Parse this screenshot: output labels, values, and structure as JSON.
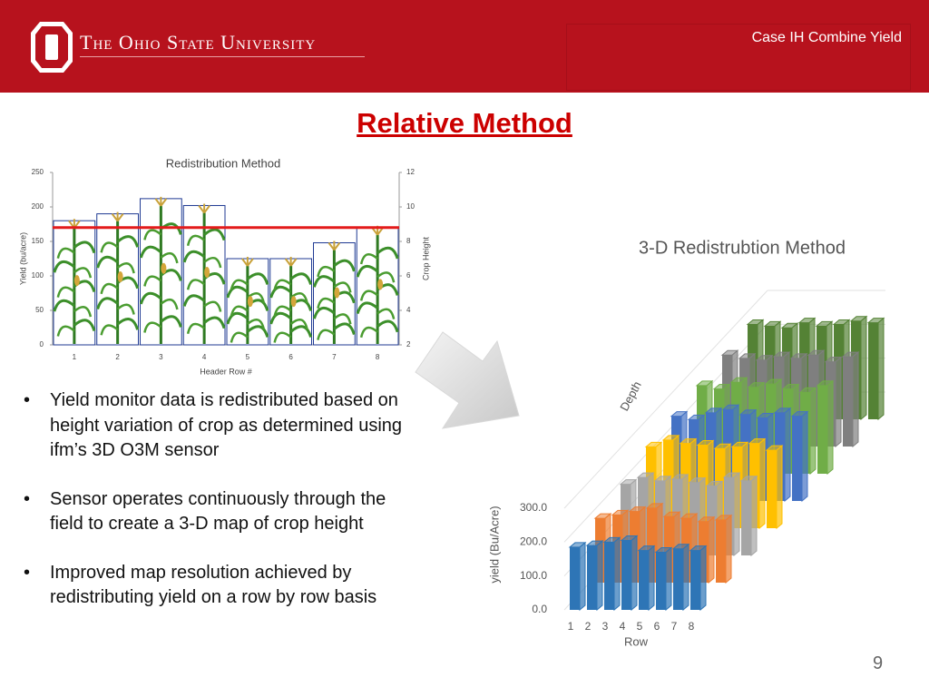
{
  "header": {
    "university": "The Ohio State University",
    "topic": "Case IH Combine Yield"
  },
  "title": "Relative Method",
  "chart_data": [
    {
      "type": "bar",
      "title": "Redistribution Method",
      "categories": [
        "1",
        "2",
        "3",
        "4",
        "5",
        "6",
        "7",
        "8"
      ],
      "values": [
        180,
        190,
        212,
        202,
        125,
        125,
        148,
        170
      ],
      "color": "#1f3a93",
      "x_label": "Header Row #",
      "y_label": "Yield (bu/acre)",
      "y2_label": "Crop Height",
      "ylim": [
        0,
        250
      ],
      "yticks": [
        0,
        50,
        100,
        150,
        200,
        250
      ],
      "y2lim": [
        2,
        12
      ],
      "y2ticks": [
        2,
        4,
        6,
        8,
        10,
        12
      ],
      "reference_line": {
        "value": 170,
        "color": "#e31b1b"
      }
    },
    {
      "type": "bar3d",
      "title": "3-D Redistrubtion Method",
      "categories": [
        "1",
        "2",
        "3",
        "4",
        "5",
        "6",
        "7",
        "8"
      ],
      "x_label": "Row",
      "y_label": "yield (Bu/Acre)",
      "z_label": "Depth",
      "ylim": [
        0,
        300
      ],
      "yticks": [
        {
          "value": 0,
          "label": "0.0"
        },
        {
          "value": 100,
          "label": "100.0"
        },
        {
          "value": 200,
          "label": "200.0"
        },
        {
          "value": 300,
          "label": "300.0"
        }
      ],
      "series": [
        {
          "color": "#2e75b6",
          "values": [
            185,
            190,
            200,
            205,
            175,
            170,
            180,
            175
          ]
        },
        {
          "color": "#ed7d31",
          "values": [
            190,
            200,
            210,
            220,
            195,
            190,
            180,
            185
          ]
        },
        {
          "color": "#a5a5a5",
          "values": [
            210,
            230,
            220,
            225,
            215,
            205,
            230,
            220
          ]
        },
        {
          "color": "#ffc000",
          "values": [
            240,
            260,
            250,
            245,
            235,
            240,
            250,
            230
          ]
        },
        {
          "color": "#4472c4",
          "values": [
            250,
            240,
            260,
            270,
            255,
            245,
            260,
            250
          ]
        },
        {
          "color": "#70ad47",
          "values": [
            260,
            250,
            270,
            255,
            265,
            250,
            240,
            260
          ]
        },
        {
          "color": "#7f7f7f",
          "values": [
            270,
            260,
            255,
            265,
            260,
            270,
            250,
            265
          ]
        },
        {
          "color": "#548235",
          "values": [
            280,
            275,
            270,
            285,
            275,
            280,
            290,
            285
          ]
        }
      ]
    }
  ],
  "bullets": [
    "Yield monitor data is redistributed based on height variation of crop as determined using ifm’s 3D O3M sensor",
    "Sensor operates continuously through the field to create a 3-D map of crop height",
    "Improved map resolution achieved by redistributing yield on a row by row basis"
  ],
  "page_number": 9
}
